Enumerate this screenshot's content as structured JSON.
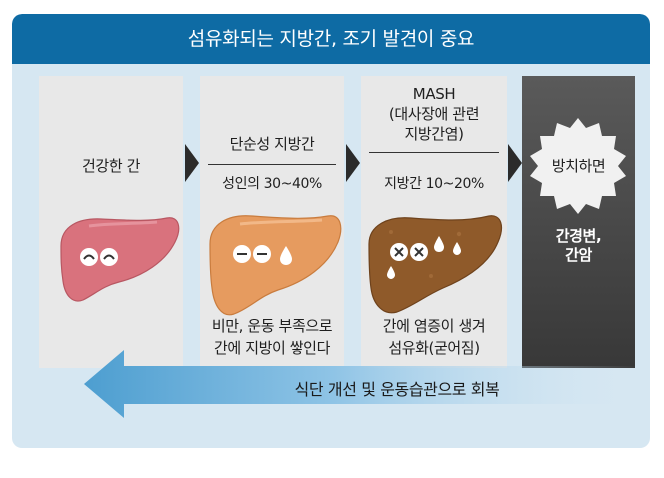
{
  "header": {
    "title": "섬유화되는 지방간, 조기 발견이 중요"
  },
  "stages": [
    {
      "label": "건강한 간"
    },
    {
      "label": "단순성 지방간",
      "detail": "성인의 30~40%",
      "caption": [
        "비만, 운동 부족으로",
        "간에 지방이 쌓인다"
      ]
    },
    {
      "label": [
        "MASH",
        "(대사장애 관련",
        "지방간염)"
      ],
      "detail": "지방간 10~20%",
      "caption": [
        "간에 염증이 생겨",
        "섬유화(굳어짐)"
      ]
    },
    {
      "label": "방치하면",
      "result": [
        "간경변,",
        "간암"
      ]
    }
  ],
  "recovery": {
    "label": "식단 개선 및 운동습관으로 회복"
  },
  "colors": {
    "header": "#0e6ba4",
    "background": "#d6e7f2",
    "panel": "#e8e8e8",
    "dark_panel": "#474747",
    "healthy_liver": "#d9727d",
    "fatty_liver": "#e69b5f",
    "mash_liver": "#8f5a2a",
    "arrow": "#4d9ed0"
  },
  "icons": [
    "smiling-liver-icon",
    "neutral-liver-icon",
    "damaged-liver-icon",
    "fat-droplet-icon",
    "starburst-shape",
    "left-arrow"
  ]
}
